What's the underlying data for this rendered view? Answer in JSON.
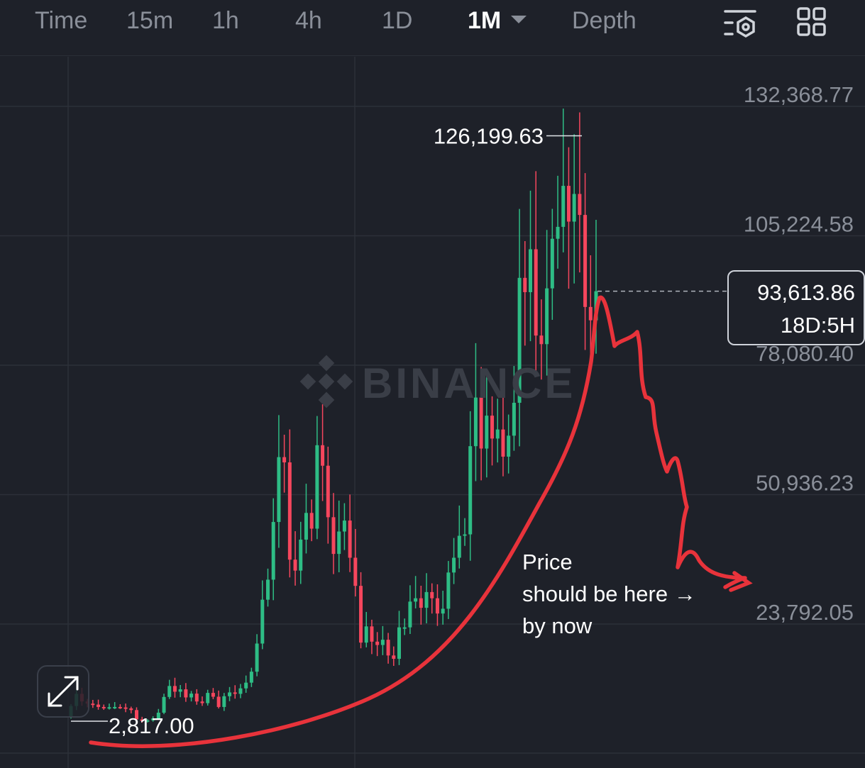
{
  "toolbar": {
    "tabs": [
      "Time",
      "15m",
      "1h",
      "4h",
      "1D",
      "1M",
      "Depth"
    ],
    "active_tab": "1M",
    "icons": [
      "chart-settings-icon",
      "grid-layout-icon"
    ]
  },
  "watermark": "BINANCE",
  "price_box": {
    "price": "93,613.86",
    "countdown": "18D:5H"
  },
  "colors": {
    "up": "#2ebd85",
    "down": "#f6465d",
    "annotation": "#e8333b",
    "background": "#1e2129"
  },
  "chart_data": {
    "type": "candlestick",
    "interval": "1M",
    "y_ticks": [
      "132,368.77",
      "105,224.58",
      "78,080.40",
      "50,936.23",
      "23,792.05"
    ],
    "y_tick_values": [
      132368.77,
      105224.58,
      78080.4,
      50936.23,
      23792.05
    ],
    "high_label": "126,199.63",
    "high_value": 126199.63,
    "low_label": "2,817.00",
    "low_value": 2817.0,
    "current_price": 93613.86,
    "annotation_text": [
      "Price",
      "should be here →",
      "by now"
    ],
    "close_series": [
      6600,
      9150,
      7560,
      7100,
      6900,
      6400,
      6300,
      6350,
      6400,
      6300,
      6100,
      5750,
      3800,
      3450,
      3600,
      4000,
      5200,
      8500,
      10800,
      9600,
      10100,
      8400,
      9200,
      7550,
      7200,
      9350,
      8550,
      6400,
      8650,
      9450,
      9150,
      10300,
      11500,
      13800,
      19700,
      28900,
      33100,
      45200,
      58800,
      57700,
      37300,
      35000,
      41500,
      47100,
      43800,
      61300,
      57000,
      46200,
      38500,
      43200,
      45500,
      37700,
      31800,
      19900,
      23300,
      20100,
      19400,
      20500,
      17200,
      16500,
      23100,
      23100,
      28500,
      29200,
      27200,
      30500,
      29200,
      26000,
      27000,
      34600,
      37700,
      42300,
      42600,
      61100,
      71300,
      60600,
      67500,
      62700,
      64600,
      58900,
      63300,
      70200,
      96400,
      93400,
      102400,
      84300,
      82500,
      94200,
      104600,
      107100,
      115700,
      108200,
      114000,
      109600,
      90300,
      87500,
      93600
    ]
  }
}
